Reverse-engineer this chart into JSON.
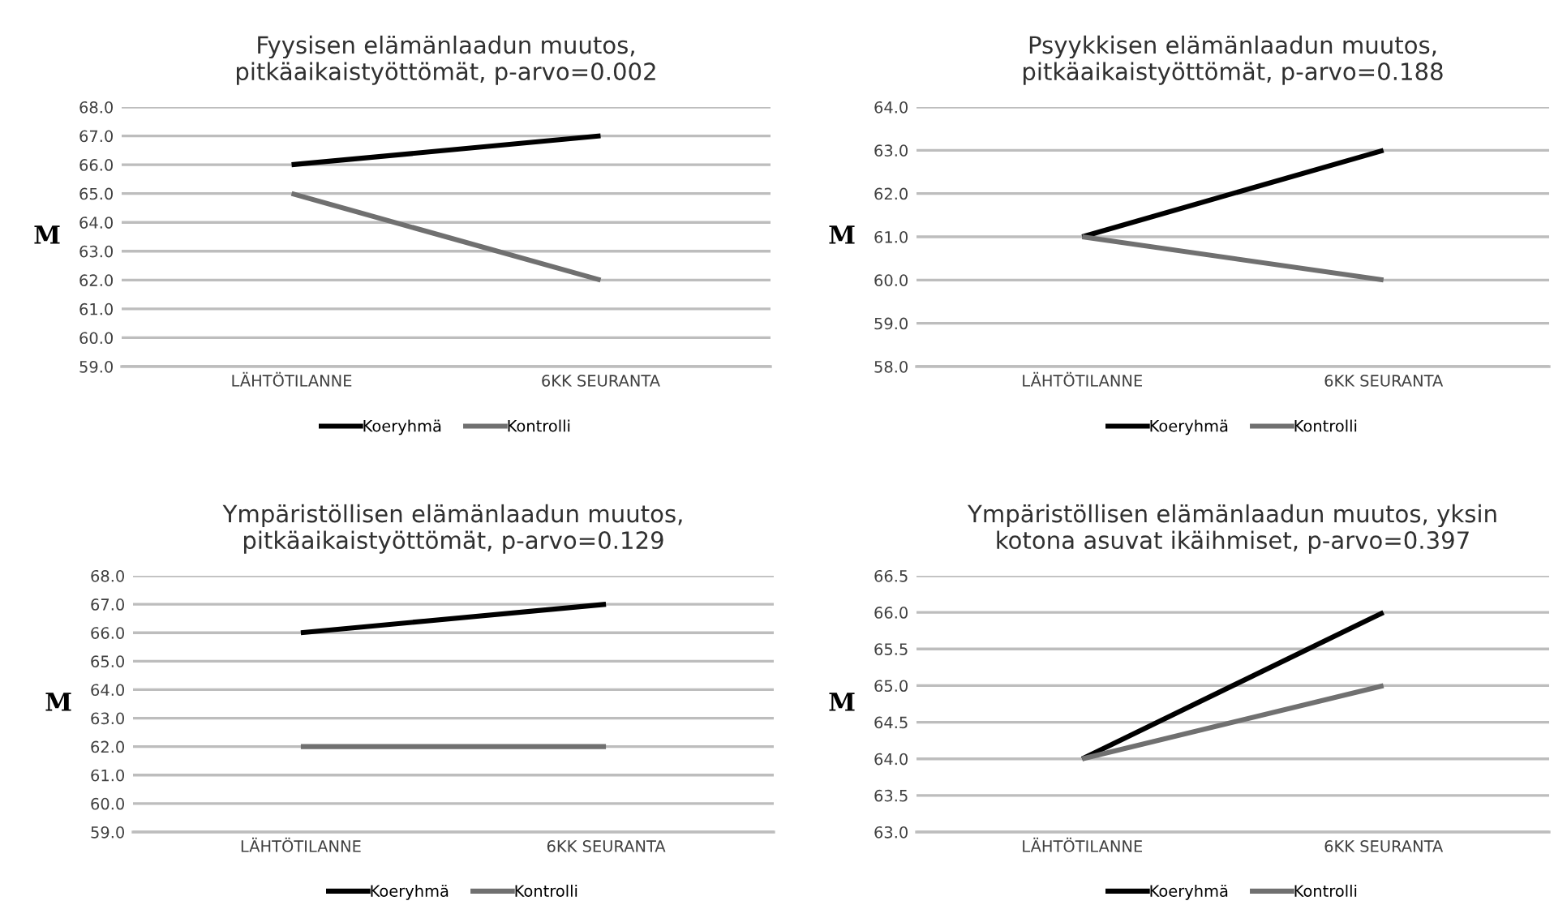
{
  "chart_data": [
    {
      "type": "line",
      "title": "Fyysisen elämänlaadun muutos,\npitkäaikaistyöttömät, p-arvo=0.002",
      "ylabel": "M",
      "categories": [
        "LÄHTÖTILANNE",
        "6KK SEURANTA"
      ],
      "series": [
        {
          "name": "Koeryhmä",
          "color": "#000000",
          "values": [
            66,
            67
          ]
        },
        {
          "name": "Kontrolli",
          "color": "#707070",
          "values": [
            65,
            62
          ]
        }
      ],
      "ylim": [
        59,
        68
      ],
      "yticks": [
        {
          "value": 59,
          "label": "59.0"
        },
        {
          "value": 60,
          "label": "60.0"
        },
        {
          "value": 61,
          "label": "61.0"
        },
        {
          "value": 62,
          "label": "62.0"
        },
        {
          "value": 63,
          "label": "63.0"
        },
        {
          "value": 64,
          "label": "64.0"
        },
        {
          "value": 65,
          "label": "65.0"
        },
        {
          "value": 66,
          "label": "66.0"
        },
        {
          "value": 67,
          "label": "67.0"
        },
        {
          "value": 68,
          "label": "68.0"
        }
      ],
      "grid": "y",
      "legend": "bottom",
      "marker": "none",
      "line_style": "solid"
    },
    {
      "type": "line",
      "title": "Psyykkisen elämänlaadun muutos,\npitkäaikaistyöttömät, p-arvo=0.188",
      "ylabel": "M",
      "categories": [
        "LÄHTÖTILANNE",
        "6KK SEURANTA"
      ],
      "series": [
        {
          "name": "Koeryhmä",
          "color": "#000000",
          "values": [
            61,
            63
          ]
        },
        {
          "name": "Kontrolli",
          "color": "#707070",
          "values": [
            61,
            60
          ]
        }
      ],
      "ylim": [
        58,
        64
      ],
      "yticks": [
        {
          "value": 58,
          "label": "58.0"
        },
        {
          "value": 59,
          "label": "59.0"
        },
        {
          "value": 60,
          "label": "60.0"
        },
        {
          "value": 61,
          "label": "61.0"
        },
        {
          "value": 62,
          "label": "62.0"
        },
        {
          "value": 63,
          "label": "63.0"
        },
        {
          "value": 64,
          "label": "64.0"
        }
      ],
      "grid": "y",
      "legend": "bottom",
      "marker": "none",
      "line_style": "solid"
    },
    {
      "type": "line",
      "title": "Ympäristöllisen elämänlaadun muutos,\npitkäaikaistyöttömät, p-arvo=0.129",
      "ylabel": "M",
      "categories": [
        "LÄHTÖTILANNE",
        "6KK SEURANTA"
      ],
      "series": [
        {
          "name": "Koeryhmä",
          "color": "#000000",
          "values": [
            66,
            67
          ]
        },
        {
          "name": "Kontrolli",
          "color": "#707070",
          "values": [
            62,
            62
          ]
        }
      ],
      "ylim": [
        59,
        68
      ],
      "yticks": [
        {
          "value": 59,
          "label": "59.0"
        },
        {
          "value": 60,
          "label": "60.0"
        },
        {
          "value": 61,
          "label": "61.0"
        },
        {
          "value": 62,
          "label": "62.0"
        },
        {
          "value": 63,
          "label": "63.0"
        },
        {
          "value": 64,
          "label": "64.0"
        },
        {
          "value": 65,
          "label": "65.0"
        },
        {
          "value": 66,
          "label": "66.0"
        },
        {
          "value": 67,
          "label": "67.0"
        },
        {
          "value": 68,
          "label": "68.0"
        }
      ],
      "grid": "y",
      "legend": "bottom",
      "marker": "none",
      "line_style": "solid"
    },
    {
      "type": "line",
      "title": "Ympäristöllisen elämänlaadun muutos, yksin\nkotona asuvat ikäihmiset, p-arvo=0.397",
      "ylabel": "M",
      "categories": [
        "LÄHTÖTILANNE",
        "6KK SEURANTA"
      ],
      "series": [
        {
          "name": "Koeryhmä",
          "color": "#000000",
          "values": [
            64,
            66
          ]
        },
        {
          "name": "Kontrolli",
          "color": "#707070",
          "values": [
            64,
            65
          ]
        }
      ],
      "ylim": [
        63,
        66.5
      ],
      "yticks": [
        {
          "value": 63,
          "label": "63.0"
        },
        {
          "value": 63.5,
          "label": "63.5"
        },
        {
          "value": 64,
          "label": "64.0"
        },
        {
          "value": 64.5,
          "label": "64.5"
        },
        {
          "value": 65,
          "label": "65.0"
        },
        {
          "value": 65.5,
          "label": "65.5"
        },
        {
          "value": 66,
          "label": "66.0"
        },
        {
          "value": 66.5,
          "label": "66.5"
        }
      ],
      "grid": "y",
      "legend": "bottom",
      "marker": "none",
      "line_style": "solid"
    }
  ]
}
